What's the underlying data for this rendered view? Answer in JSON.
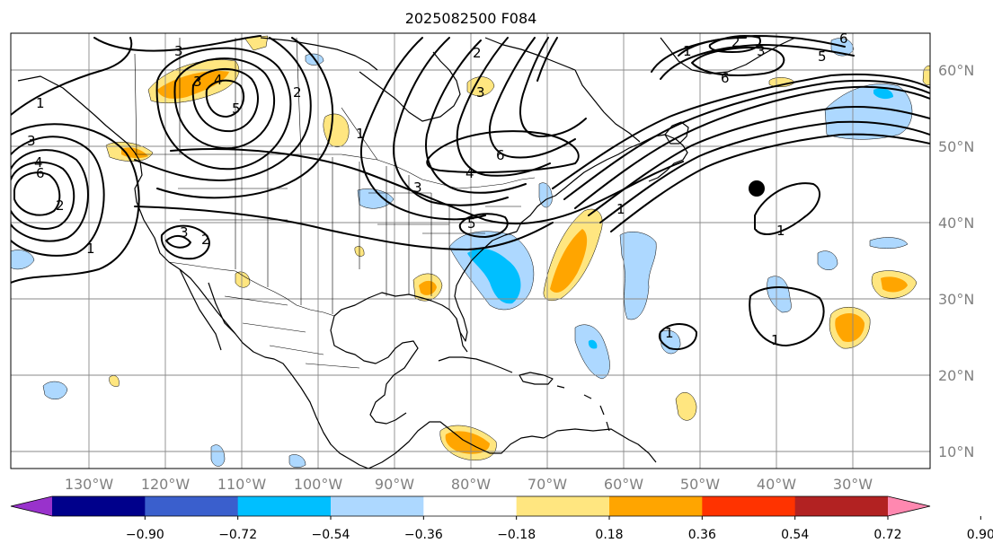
{
  "title": "2025082500 F084",
  "lon_labels": [
    "130°W",
    "120°W",
    "110°W",
    "100°W",
    "90°W",
    "80°W",
    "70°W",
    "60°W",
    "50°W",
    "40°W",
    "30°W"
  ],
  "lat_labels": [
    "60°N",
    "50°N",
    "40°N",
    "30°N",
    "20°N",
    "10°N"
  ],
  "colorbar": {
    "ticks": [
      "−0.90",
      "−0.72",
      "−0.54",
      "−0.36",
      "−0.18",
      "0.18",
      "0.36",
      "0.54",
      "0.72",
      "0.90"
    ],
    "colors": [
      "#9932cc",
      "#00008b",
      "#3a5fcd",
      "#00bfff",
      "#add8ff",
      "#ffffff",
      "#ffe680",
      "#ffa500",
      "#ff3300",
      "#b22222",
      "#ff88b0"
    ]
  },
  "contour_labels": [
    {
      "name": "contour-label-3-alaska",
      "text": "3"
    },
    {
      "name": "contour-label-3-yukon",
      "text": "3"
    },
    {
      "name": "contour-label-4-yukon",
      "text": "4"
    },
    {
      "name": "contour-label-5-yukon",
      "text": "5"
    },
    {
      "name": "contour-label-1-gulf-alaska",
      "text": "1"
    },
    {
      "name": "contour-label-3-pacific",
      "text": "3"
    },
    {
      "name": "contour-label-4-pacific",
      "text": "4"
    },
    {
      "name": "contour-label-6-pacific",
      "text": "6"
    },
    {
      "name": "contour-label-2-pacific",
      "text": "2"
    },
    {
      "name": "contour-label-1-pacific",
      "text": "1"
    },
    {
      "name": "contour-label-1-canada",
      "text": "1"
    },
    {
      "name": "contour-label-2-canada",
      "text": "2"
    },
    {
      "name": "contour-label-3-southwest",
      "text": "3"
    },
    {
      "name": "contour-label-2-southwest",
      "text": "2"
    },
    {
      "name": "contour-label-2-hudson",
      "text": "2"
    },
    {
      "name": "contour-label-3-hudson",
      "text": "3"
    },
    {
      "name": "contour-label-6-quebec",
      "text": "6"
    },
    {
      "name": "contour-label-4-ontario",
      "text": "4"
    },
    {
      "name": "contour-label-3-midwest",
      "text": "3"
    },
    {
      "name": "contour-label-5-midatlantic",
      "text": "5"
    },
    {
      "name": "contour-label-1-atlantic",
      "text": "1"
    },
    {
      "name": "contour-label-1-greenland",
      "text": "1"
    },
    {
      "name": "contour-label-2-greenland",
      "text": "2"
    },
    {
      "name": "contour-label-3-greenland",
      "text": "3"
    },
    {
      "name": "contour-label-5-atlantic-north",
      "text": "5"
    },
    {
      "name": "contour-label-6-greenland",
      "text": "6"
    },
    {
      "name": "contour-label-6-atlantic-east",
      "text": "6"
    },
    {
      "name": "contour-label-1-midatlantic",
      "text": "1"
    },
    {
      "name": "contour-label-1-atlantic-south",
      "text": "1"
    },
    {
      "name": "contour-label-1-caribbean",
      "text": "1"
    }
  ]
}
